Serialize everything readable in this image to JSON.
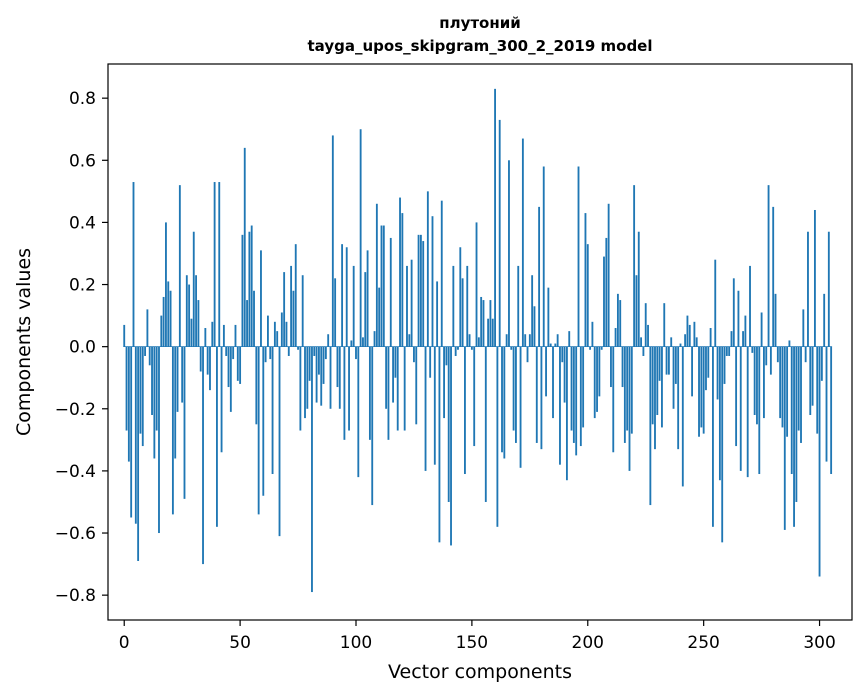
{
  "chart_data": {
    "type": "bar",
    "title_line1": "плутоний",
    "title_line2": "tayga_upos_skipgram_300_2_2019 model",
    "xlabel": "Vector components",
    "ylabel": "Components values",
    "xlim": [
      -7,
      314
    ],
    "ylim": [
      -0.88,
      0.91
    ],
    "xticks": [
      0,
      50,
      100,
      150,
      200,
      250,
      300
    ],
    "xtick_labels": [
      "0",
      "50",
      "100",
      "150",
      "200",
      "250",
      "300"
    ],
    "yticks": [
      -0.8,
      -0.6,
      -0.4,
      -0.2,
      0.0,
      0.2,
      0.4,
      0.6,
      0.8
    ],
    "ytick_labels": [
      "−0.8",
      "−0.6",
      "−0.4",
      "−0.2",
      "0.0",
      "0.2",
      "0.4",
      "0.6",
      "0.8"
    ],
    "bar_color": "#1f77b4",
    "grid": false,
    "values": [
      0.07,
      -0.27,
      -0.37,
      -0.55,
      0.53,
      -0.57,
      -0.69,
      -0.28,
      -0.32,
      -0.03,
      0.12,
      -0.06,
      -0.22,
      -0.36,
      -0.27,
      -0.6,
      0.1,
      0.16,
      0.4,
      0.21,
      0.18,
      -0.54,
      -0.36,
      -0.21,
      0.52,
      -0.18,
      -0.49,
      0.23,
      0.2,
      0.09,
      0.37,
      0.23,
      0.15,
      -0.08,
      -0.7,
      0.06,
      -0.09,
      -0.14,
      0.08,
      0.53,
      -0.58,
      0.53,
      -0.34,
      0.07,
      -0.03,
      -0.13,
      -0.21,
      -0.04,
      0.07,
      -0.11,
      -0.12,
      0.36,
      0.64,
      0.15,
      0.37,
      0.39,
      0.18,
      -0.25,
      -0.54,
      0.31,
      -0.48,
      -0.05,
      0.1,
      -0.04,
      -0.41,
      0.08,
      0.05,
      -0.61,
      0.11,
      0.24,
      0.08,
      -0.03,
      0.26,
      0.18,
      0.33,
      -0.01,
      -0.27,
      0.23,
      -0.23,
      -0.2,
      -0.11,
      -0.79,
      -0.03,
      -0.18,
      -0.09,
      -0.19,
      -0.12,
      -0.04,
      0.04,
      -0.2,
      0.68,
      0.22,
      -0.13,
      -0.2,
      0.33,
      -0.3,
      0.32,
      -0.27,
      0.02,
      0.26,
      -0.04,
      -0.42,
      0.7,
      0.03,
      0.24,
      0.31,
      -0.3,
      -0.51,
      0.05,
      0.46,
      0.19,
      0.39,
      0.39,
      -0.2,
      -0.3,
      0.35,
      -0.18,
      -0.1,
      -0.27,
      0.48,
      0.43,
      -0.27,
      0.26,
      0.04,
      0.28,
      -0.05,
      -0.25,
      0.36,
      0.36,
      0.34,
      -0.4,
      0.5,
      -0.1,
      0.42,
      -0.38,
      0.21,
      -0.63,
      0.47,
      -0.23,
      -0.06,
      -0.5,
      -0.64,
      0.26,
      -0.03,
      -0.01,
      0.32,
      0.22,
      -0.41,
      0.26,
      0.04,
      -0.01,
      -0.32,
      0.4,
      0.03,
      0.16,
      0.15,
      -0.5,
      0.09,
      0.15,
      0.09,
      0.83,
      -0.58,
      0.73,
      -0.34,
      -0.36,
      0.04,
      0.6,
      -0.01,
      -0.27,
      -0.31,
      0.26,
      -0.39,
      0.67,
      0.04,
      -0.05,
      0.04,
      0.23,
      0.13,
      -0.31,
      0.45,
      -0.33,
      0.58,
      -0.16,
      0.19,
      0.01,
      -0.23,
      0.01,
      0.04,
      -0.38,
      -0.05,
      -0.18,
      -0.43,
      0.05,
      -0.27,
      -0.31,
      -0.35,
      0.58,
      -0.32,
      -0.26,
      0.43,
      0.33,
      -0.01,
      0.08,
      -0.23,
      -0.21,
      -0.16,
      -0.01,
      0.29,
      0.35,
      0.46,
      -0.13,
      -0.34,
      0.06,
      0.17,
      0.15,
      -0.13,
      -0.31,
      -0.27,
      -0.4,
      -0.28,
      0.52,
      0.23,
      0.37,
      0.03,
      -0.03,
      0.14,
      0.07,
      -0.51,
      -0.25,
      -0.33,
      -0.22,
      -0.11,
      -0.26,
      0.14,
      -0.09,
      -0.09,
      0.03,
      -0.2,
      -0.12,
      -0.33,
      0.01,
      -0.45,
      0.04,
      0.1,
      0.07,
      -0.16,
      0.08,
      0.03,
      -0.29,
      -0.26,
      -0.28,
      -0.14,
      -0.1,
      0.06,
      -0.58,
      0.28,
      -0.17,
      -0.43,
      -0.63,
      -0.12,
      -0.03,
      -0.03,
      0.05,
      0.22,
      -0.32,
      0.18,
      -0.4,
      0.05,
      0.1,
      -0.42,
      0.26,
      -0.02,
      -0.22,
      -0.25,
      -0.41,
      0.11,
      -0.23,
      -0.06,
      0.52,
      -0.09,
      0.45,
      0.17,
      -0.05,
      -0.23,
      -0.26,
      -0.59,
      -0.29,
      0.02,
      -0.41,
      -0.58,
      -0.5,
      -0.27,
      -0.31,
      0.12,
      -0.05,
      0.37,
      -0.22,
      -0.19,
      0.44,
      -0.28,
      -0.74,
      -0.11,
      0.17,
      -0.37,
      0.37,
      -0.41
    ]
  }
}
